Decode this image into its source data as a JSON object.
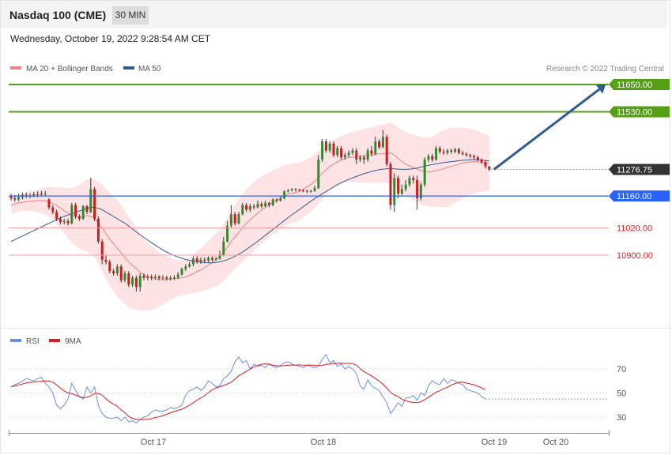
{
  "header": {
    "title": "Nasdaq 100 (CME)",
    "timeframe": "30 MIN",
    "datetime": "Wednesday, October 19, 2022 9:28:54 AM CET"
  },
  "legend": {
    "ma20": "MA 20 + Bollinger Bands",
    "ma50": "MA 50",
    "credit": "Research © 2022 Trading Central",
    "rsi": "RSI",
    "rsi_ma": "9MA"
  },
  "colors": {
    "ma20": "#f08080",
    "ma50": "#2f5b93",
    "band_fill": "#fde3e3",
    "resistance": "#55a014",
    "support_blue": "#2962ff",
    "support_red": "#e21f1f",
    "bull": "#2e8b2e",
    "bear": "#c81e1e",
    "rsi": "#6d8ee6",
    "rsi_ma": "#e01b1b",
    "last_price": "#333333",
    "arrow": "#2f5b93"
  },
  "chart_data": [
    {
      "type": "candlestick",
      "x_ticks": [
        "Oct 17",
        "Oct 18",
        "Oct 19",
        "Oct 20"
      ],
      "last_price": 11276.75,
      "levels": [
        {
          "value": 11650.0,
          "label": "11650.00",
          "kind": "resistance"
        },
        {
          "value": 11530.0,
          "label": "11530.00",
          "kind": "resistance"
        },
        {
          "value": 11160.0,
          "label": "11160.00",
          "kind": "pivot"
        },
        {
          "value": 11020.0,
          "label": "11020.00",
          "kind": "support"
        },
        {
          "value": 10900.0,
          "label": "10900.00",
          "kind": "support"
        }
      ],
      "target_arrow": {
        "from": 11276.75,
        "to": 11650.0
      },
      "ylim": [
        10610,
        11730
      ],
      "candles": [
        [
          11160,
          11150,
          11170,
          11140
        ],
        [
          11150,
          11145,
          11165,
          11135
        ],
        [
          11145,
          11155,
          11170,
          11138
        ],
        [
          11155,
          11165,
          11175,
          11145
        ],
        [
          11165,
          11160,
          11175,
          11150
        ],
        [
          11160,
          11162,
          11172,
          11150
        ],
        [
          11162,
          11168,
          11178,
          11155
        ],
        [
          11168,
          11165,
          11180,
          11155
        ],
        [
          11165,
          11170,
          11182,
          11160
        ],
        [
          11170,
          11172,
          11182,
          11162
        ],
        [
          11145,
          11110,
          11150,
          11100
        ],
        [
          11110,
          11090,
          11120,
          11080
        ],
        [
          11090,
          11060,
          11100,
          11050
        ],
        [
          11060,
          11045,
          11070,
          11035
        ],
        [
          11045,
          11050,
          11060,
          11035
        ],
        [
          11050,
          11040,
          11060,
          11030
        ],
        [
          11040,
          11120,
          11130,
          11035
        ],
        [
          11120,
          11070,
          11130,
          11060
        ],
        [
          11070,
          11060,
          11080,
          11050
        ],
        [
          11060,
          11115,
          11120,
          11055
        ],
        [
          11115,
          11090,
          11120,
          11080
        ],
        [
          11090,
          11190,
          11240,
          11085
        ],
        [
          11190,
          11060,
          11200,
          11050
        ],
        [
          11060,
          10960,
          11070,
          10950
        ],
        [
          10960,
          10880,
          10970,
          10860
        ],
        [
          10880,
          10870,
          10900,
          10860
        ],
        [
          10870,
          10830,
          10880,
          10820
        ],
        [
          10830,
          10820,
          10840,
          10810
        ],
        [
          10820,
          10850,
          10860,
          10810
        ],
        [
          10850,
          10790,
          10860,
          10780
        ],
        [
          10790,
          10820,
          10830,
          10780
        ],
        [
          10820,
          10770,
          10830,
          10760
        ],
        [
          10770,
          10800,
          10810,
          10760
        ],
        [
          10800,
          10760,
          10810,
          10740
        ],
        [
          10760,
          10810,
          10820,
          10740
        ],
        [
          10810,
          10800,
          10820,
          10790
        ],
        [
          10800,
          10805,
          10815,
          10790
        ],
        [
          10805,
          10800,
          10815,
          10790
        ],
        [
          10800,
          10805,
          10815,
          10792
        ],
        [
          10805,
          10798,
          10812,
          10790
        ],
        [
          10798,
          10802,
          10812,
          10790
        ],
        [
          10802,
          10796,
          10810,
          10788
        ],
        [
          10796,
          10800,
          10810,
          10788
        ],
        [
          10800,
          10802,
          10812,
          10790
        ],
        [
          10802,
          10815,
          10825,
          10795
        ],
        [
          10815,
          10840,
          10845,
          10810
        ],
        [
          10840,
          10850,
          10860,
          10830
        ],
        [
          10850,
          10860,
          10870,
          10845
        ],
        [
          10860,
          10885,
          10895,
          10850
        ],
        [
          10885,
          10870,
          10895,
          10862
        ],
        [
          10870,
          10880,
          10890,
          10862
        ],
        [
          10880,
          10875,
          10890,
          10865
        ],
        [
          10875,
          10888,
          10895,
          10868
        ],
        [
          10888,
          10880,
          10895,
          10872
        ],
        [
          10880,
          10885,
          10892,
          10875
        ],
        [
          10885,
          10900,
          10920,
          10880
        ],
        [
          10900,
          10960,
          10980,
          10895
        ],
        [
          10960,
          11030,
          11050,
          10955
        ],
        [
          11030,
          11080,
          11120,
          11020
        ],
        [
          11080,
          11040,
          11090,
          11030
        ],
        [
          11040,
          11080,
          11090,
          11035
        ],
        [
          11080,
          11120,
          11130,
          11075
        ],
        [
          11120,
          11100,
          11130,
          11090
        ],
        [
          11100,
          11115,
          11125,
          11090
        ],
        [
          11115,
          11110,
          11125,
          11100
        ],
        [
          11110,
          11125,
          11140,
          11105
        ],
        [
          11125,
          11115,
          11135,
          11105
        ],
        [
          11115,
          11130,
          11140,
          11110
        ],
        [
          11130,
          11120,
          11135,
          11110
        ],
        [
          11120,
          11145,
          11150,
          11115
        ],
        [
          11145,
          11140,
          11150,
          11130
        ],
        [
          11140,
          11150,
          11160,
          11135
        ],
        [
          11150,
          11180,
          11185,
          11145
        ],
        [
          11180,
          11185,
          11190,
          11175
        ],
        [
          11185,
          11190,
          11195,
          11180
        ],
        [
          11190,
          11188,
          11195,
          11180
        ],
        [
          11188,
          11186,
          11192,
          11180
        ],
        [
          11186,
          11183,
          11190,
          11176
        ],
        [
          11183,
          11180,
          11188,
          11172
        ],
        [
          11180,
          11182,
          11188,
          11174
        ],
        [
          11182,
          11195,
          11205,
          11178
        ],
        [
          11195,
          11320,
          11340,
          11190
        ],
        [
          11320,
          11400,
          11410,
          11310
        ],
        [
          11400,
          11360,
          11410,
          11350
        ],
        [
          11360,
          11390,
          11400,
          11350
        ],
        [
          11390,
          11340,
          11400,
          11330
        ],
        [
          11340,
          11370,
          11380,
          11330
        ],
        [
          11370,
          11330,
          11380,
          11320
        ],
        [
          11330,
          11340,
          11350,
          11320
        ],
        [
          11340,
          11350,
          11360,
          11330
        ],
        [
          11350,
          11360,
          11370,
          11340
        ],
        [
          11360,
          11320,
          11370,
          11300
        ],
        [
          11320,
          11330,
          11340,
          11310
        ],
        [
          11330,
          11320,
          11340,
          11300
        ],
        [
          11320,
          11360,
          11370,
          11310
        ],
        [
          11360,
          11345,
          11380,
          11335
        ],
        [
          11345,
          11400,
          11420,
          11340
        ],
        [
          11400,
          11375,
          11410,
          11365
        ],
        [
          11375,
          11420,
          11450,
          11370
        ],
        [
          11420,
          11300,
          11430,
          11290
        ],
        [
          11300,
          11120,
          11310,
          11100
        ],
        [
          11120,
          11240,
          11260,
          11090
        ],
        [
          11240,
          11170,
          11250,
          11150
        ],
        [
          11170,
          11190,
          11210,
          11160
        ],
        [
          11190,
          11210,
          11230,
          11180
        ],
        [
          11210,
          11240,
          11250,
          11200
        ],
        [
          11240,
          11230,
          11250,
          11215
        ],
        [
          11230,
          11150,
          11250,
          11100
        ],
        [
          11150,
          11210,
          11220,
          11140
        ],
        [
          11210,
          11320,
          11330,
          11200
        ],
        [
          11320,
          11335,
          11345,
          11310
        ],
        [
          11335,
          11320,
          11345,
          11310
        ],
        [
          11320,
          11370,
          11380,
          11315
        ],
        [
          11370,
          11355,
          11378,
          11345
        ],
        [
          11355,
          11350,
          11365,
          11340
        ],
        [
          11350,
          11360,
          11368,
          11342
        ],
        [
          11360,
          11355,
          11368,
          11345
        ],
        [
          11355,
          11365,
          11372,
          11348
        ],
        [
          11365,
          11350,
          11372,
          11342
        ],
        [
          11350,
          11345,
          11358,
          11338
        ],
        [
          11345,
          11340,
          11352,
          11332
        ],
        [
          11340,
          11335,
          11346,
          11326
        ],
        [
          11335,
          11330,
          11342,
          11322
        ],
        [
          11330,
          11320,
          11336,
          11312
        ],
        [
          11320,
          11310,
          11325,
          11300
        ],
        [
          11310,
          11290,
          11314,
          11280
        ],
        [
          11290,
          11276.75,
          11292,
          11270
        ]
      ],
      "ma20": [
        11120,
        11125,
        11130,
        11132,
        11135,
        11137,
        11138,
        11140,
        11140,
        11138,
        11135,
        11128,
        11118,
        11108,
        11095,
        11085,
        11075,
        11070,
        11068,
        11070,
        11075,
        11070,
        11062,
        11040,
        11020,
        10995,
        10970,
        10950,
        10930,
        10910,
        10890,
        10870,
        10855,
        10840,
        10825,
        10815,
        10805,
        10800,
        10795,
        10793,
        10792,
        10793,
        10795,
        10797,
        10799,
        10801,
        10805,
        10811,
        10818,
        10828,
        10835,
        10845,
        10855,
        10868,
        10880,
        10893,
        10912,
        10935,
        10960,
        10980,
        11000,
        11020,
        11040,
        11055,
        11070,
        11085,
        11098,
        11110,
        11122,
        11132,
        11140,
        11150,
        11160,
        11168,
        11172,
        11175,
        11180,
        11190,
        11200,
        11210,
        11225,
        11240,
        11260,
        11275,
        11290,
        11300,
        11310,
        11318,
        11325,
        11330,
        11330,
        11332,
        11334,
        11336,
        11338,
        11340,
        11342,
        11345,
        11346,
        11348,
        11350,
        11340,
        11325,
        11312,
        11300,
        11292,
        11285,
        11278,
        11272,
        11268,
        11265,
        11268,
        11272,
        11276,
        11280,
        11285,
        11290,
        11295,
        11300,
        11305,
        11308,
        11310,
        11311,
        11310,
        11308,
        11306,
        11305
      ],
      "ma50": [
        10960,
        10968,
        10976,
        10984,
        10992,
        11000,
        11008,
        11016,
        11024,
        11032,
        11040,
        11048,
        11056,
        11064,
        11070,
        11076,
        11082,
        11088,
        11094,
        11100,
        11105,
        11110,
        11110,
        11106,
        11100,
        11090,
        11080,
        11070,
        11060,
        11050,
        11040,
        11028,
        11015,
        11002,
        10990,
        10978,
        10966,
        10955,
        10944,
        10933,
        10923,
        10914,
        10906,
        10898,
        10892,
        10886,
        10881,
        10877,
        10874,
        10871,
        10869,
        10867,
        10866,
        10866,
        10868,
        10871,
        10875,
        10880,
        10887,
        10895,
        10904,
        10914,
        10925,
        10937,
        10949,
        10961,
        10974,
        10987,
        11000,
        11013,
        11026,
        11039,
        11052,
        11065,
        11077,
        11089,
        11101,
        11113,
        11125,
        11137,
        11148,
        11159,
        11170,
        11180,
        11190,
        11200,
        11210,
        11218,
        11226,
        11233,
        11240,
        11246,
        11252,
        11258,
        11263,
        11268,
        11272,
        11276,
        11278,
        11280,
        11280,
        11279,
        11278,
        11277,
        11277,
        11278,
        11280,
        11283,
        11287,
        11291,
        11295,
        11298,
        11301,
        11304,
        11307,
        11309,
        11311,
        11313,
        11315,
        11317,
        11318,
        11319,
        11320,
        11319,
        11318,
        11316,
        11314
      ],
      "bb_width": [
        35,
        36,
        37,
        38,
        40,
        42,
        45,
        50,
        55,
        60,
        65,
        72,
        80,
        90,
        100,
        110,
        120,
        130,
        140,
        150,
        158,
        165,
        170,
        180,
        190,
        198,
        205,
        210,
        212,
        210,
        205,
        198,
        190,
        180,
        170,
        160,
        150,
        140,
        130,
        120,
        110,
        100,
        92,
        85,
        80,
        78,
        78,
        80,
        85,
        90,
        95,
        100,
        105,
        110,
        115,
        120,
        125,
        130,
        135,
        140,
        145,
        148,
        150,
        152,
        152,
        150,
        148,
        145,
        142,
        140,
        138,
        136,
        134,
        132,
        130,
        128,
        126,
        124,
        122,
        120,
        118,
        115,
        112,
        110,
        108,
        106,
        105,
        105,
        106,
        108,
        110,
        112,
        115,
        118,
        120,
        122,
        124,
        126,
        128,
        130,
        132,
        134,
        136,
        138,
        140,
        142,
        144,
        146,
        148,
        150,
        152,
        155,
        160,
        165,
        170,
        172,
        170,
        165,
        160,
        155,
        150,
        145,
        140,
        135,
        130,
        125,
        120
      ]
    },
    {
      "type": "line",
      "name": "RSI",
      "y_ticks": [
        70,
        50,
        30
      ],
      "ylim": [
        17,
        83
      ],
      "rsi": [
        55,
        57,
        58,
        60,
        62,
        61,
        60,
        62,
        63,
        58,
        55,
        50,
        40,
        37,
        40,
        45,
        58,
        52,
        47,
        45,
        55,
        50,
        55,
        40,
        33,
        30,
        29,
        29,
        30,
        27,
        30,
        26,
        27,
        25,
        28,
        30,
        31,
        34,
        36,
        35,
        35,
        36,
        38,
        37,
        38,
        40,
        48,
        52,
        53,
        55,
        52,
        55,
        60,
        58,
        55,
        56,
        62,
        64,
        68,
        76,
        80,
        75,
        77,
        70,
        74,
        72,
        73,
        71,
        74,
        72,
        71,
        73,
        75,
        76,
        74,
        73,
        72,
        71,
        73,
        72,
        71,
        72,
        78,
        82,
        75,
        77,
        72,
        74,
        70,
        72,
        70,
        66,
        56,
        53,
        61,
        56,
        54,
        52,
        47,
        42,
        33,
        37,
        42,
        39,
        46,
        46,
        48,
        44,
        50,
        48,
        56,
        60,
        58,
        57,
        62,
        58,
        61,
        60,
        58,
        57,
        53,
        52,
        51,
        50,
        47,
        45
      ]
    }
  ]
}
